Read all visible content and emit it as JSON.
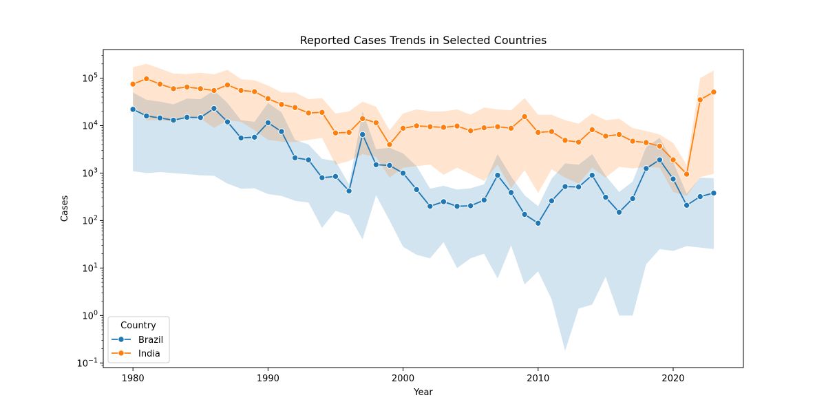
{
  "chart_data": {
    "type": "line",
    "title": "Reported Cases Trends in Selected Countries",
    "xlabel": "Year",
    "ylabel": "Cases",
    "yscale": "log",
    "xlim": [
      1977.8,
      2025.2
    ],
    "ylim": [
      0.08,
      400000
    ],
    "x_ticks": [
      1980,
      1990,
      2000,
      2010,
      2020
    ],
    "y_ticks": [
      {
        "value": 0.1,
        "base": "10",
        "exp": "−1"
      },
      {
        "value": 1,
        "base": "10",
        "exp": "0"
      },
      {
        "value": 10,
        "base": "10",
        "exp": "1"
      },
      {
        "value": 100,
        "base": "10",
        "exp": "2"
      },
      {
        "value": 1000,
        "base": "10",
        "exp": "3"
      },
      {
        "value": 10000,
        "base": "10",
        "exp": "4"
      },
      {
        "value": 100000,
        "base": "10",
        "exp": "5"
      }
    ],
    "grid": false,
    "legend": {
      "title": "Country",
      "position": "lower-left"
    },
    "x": [
      1980,
      1981,
      1982,
      1983,
      1984,
      1985,
      1986,
      1987,
      1988,
      1989,
      1990,
      1991,
      1992,
      1993,
      1994,
      1995,
      1996,
      1997,
      1998,
      1999,
      2000,
      2001,
      2002,
      2003,
      2004,
      2005,
      2006,
      2007,
      2008,
      2009,
      2010,
      2011,
      2012,
      2013,
      2014,
      2015,
      2016,
      2017,
      2018,
      2019,
      2020,
      2021,
      2022,
      2023
    ],
    "series": [
      {
        "name": "Brazil",
        "color": "#1f77b4",
        "values": [
          22000,
          16000,
          14500,
          13000,
          15000,
          14800,
          23000,
          12000,
          5500,
          5700,
          11500,
          7500,
          2100,
          1900,
          800,
          850,
          420,
          6500,
          1500,
          1450,
          1000,
          450,
          200,
          250,
          200,
          205,
          270,
          900,
          390,
          135,
          88,
          260,
          520,
          510,
          900,
          310,
          150,
          290,
          1250,
          1900,
          750,
          210,
          320,
          380
        ],
        "ci_low": [
          1100,
          1000,
          1050,
          1000,
          950,
          900,
          880,
          600,
          470,
          480,
          360,
          330,
          260,
          240,
          70,
          160,
          130,
          40,
          340,
          100,
          28,
          19,
          16,
          35,
          10,
          16,
          20,
          6,
          30,
          4.5,
          8.5,
          2.2,
          0.18,
          1.4,
          1.7,
          6.5,
          1,
          1,
          12,
          25,
          23,
          29,
          27,
          25
        ],
        "ci_high": [
          50000,
          35000,
          32000,
          28000,
          37000,
          36000,
          55000,
          30000,
          13000,
          12000,
          30000,
          19000,
          5000,
          4000,
          2000,
          1800,
          580,
          20000,
          3200,
          3400,
          2600,
          1400,
          470,
          540,
          450,
          480,
          580,
          2500,
          850,
          340,
          200,
          760,
          1600,
          1500,
          2500,
          880,
          400,
          660,
          3500,
          5500,
          1700,
          370,
          800,
          780
        ]
      },
      {
        "name": "India",
        "color": "#ff7f0e",
        "values": [
          75000,
          97000,
          75000,
          60000,
          65000,
          60000,
          55000,
          72000,
          55000,
          52000,
          37000,
          28000,
          24000,
          18500,
          19000,
          7000,
          7200,
          14000,
          11500,
          4000,
          8800,
          9900,
          9500,
          9200,
          9800,
          7800,
          9000,
          9500,
          8800,
          15500,
          7200,
          7500,
          4900,
          4500,
          8200,
          6000,
          6500,
          4700,
          4400,
          3700,
          1900,
          950,
          35000,
          51000
        ],
        "ci_low": [
          28000,
          13000,
          13000,
          12000,
          16000,
          14000,
          9000,
          13000,
          12000,
          8000,
          5000,
          4600,
          4500,
          5000,
          5500,
          1500,
          1800,
          2500,
          2200,
          800,
          1300,
          1400,
          1500,
          920,
          1300,
          950,
          680,
          1500,
          480,
          1150,
          380,
          1200,
          800,
          600,
          1300,
          800,
          1350,
          1250,
          1350,
          1300,
          400,
          330,
          820,
          960
        ],
        "ci_high": [
          170000,
          200000,
          160000,
          125000,
          122000,
          130000,
          120000,
          150000,
          95000,
          90000,
          70000,
          50000,
          50000,
          36000,
          38000,
          18000,
          20000,
          32000,
          25000,
          8000,
          18000,
          22000,
          20000,
          20000,
          22000,
          17000,
          24000,
          22000,
          21000,
          38000,
          17000,
          17000,
          13000,
          11000,
          18000,
          13000,
          14000,
          8900,
          7700,
          6500,
          4300,
          1500,
          100000,
          145000
        ]
      }
    ]
  }
}
